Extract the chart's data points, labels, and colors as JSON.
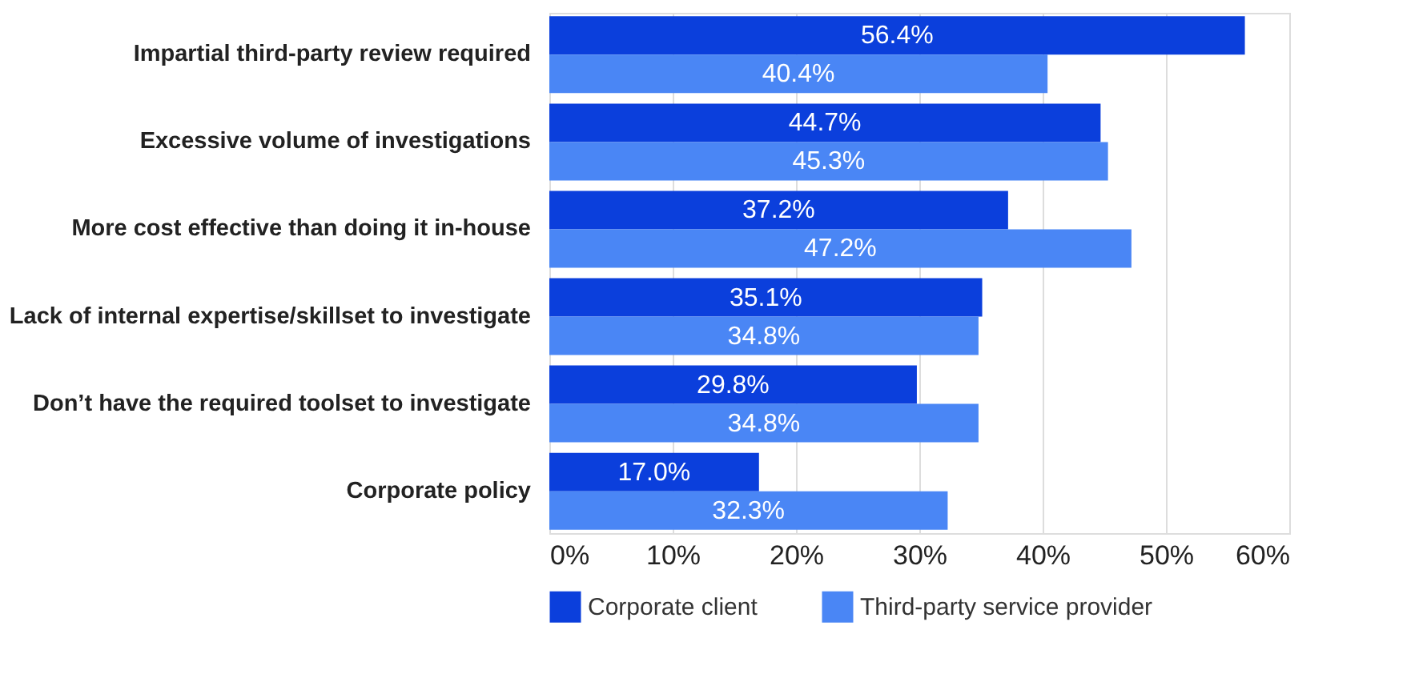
{
  "chart_data": {
    "type": "bar",
    "orientation": "horizontal",
    "categories": [
      "Impartial third-party review required",
      "Excessive volume of investigations",
      "More cost effective than doing it in-house",
      "Lack of internal expertise/skillset to investigate",
      "Don’t have the required toolset to investigate",
      "Corporate policy"
    ],
    "series": [
      {
        "name": "Corporate client",
        "color": "#0b3fdc",
        "values": [
          56.4,
          44.7,
          37.2,
          35.1,
          29.8,
          17.0
        ],
        "value_labels": [
          "56.4%",
          "44.7%",
          "37.2%",
          "35.1%",
          "29.8%",
          "17.0%"
        ]
      },
      {
        "name": "Third-party service provider",
        "color": "#4a86f5",
        "values": [
          40.4,
          45.3,
          47.2,
          34.8,
          34.8,
          32.3
        ],
        "value_labels": [
          "40.4%",
          "45.3%",
          "47.2%",
          "34.8%",
          "34.8%",
          "32.3%"
        ]
      }
    ],
    "xlim": [
      0,
      60
    ],
    "xticks": [
      {
        "value": 0,
        "label": "0%"
      },
      {
        "value": 10,
        "label": "10%"
      },
      {
        "value": 20,
        "label": "20%"
      },
      {
        "value": 30,
        "label": "30%"
      },
      {
        "value": 40,
        "label": "40%"
      },
      {
        "value": 50,
        "label": "50%"
      },
      {
        "value": 60,
        "label": "60%"
      }
    ],
    "grid": "x",
    "legend": "bottom"
  }
}
